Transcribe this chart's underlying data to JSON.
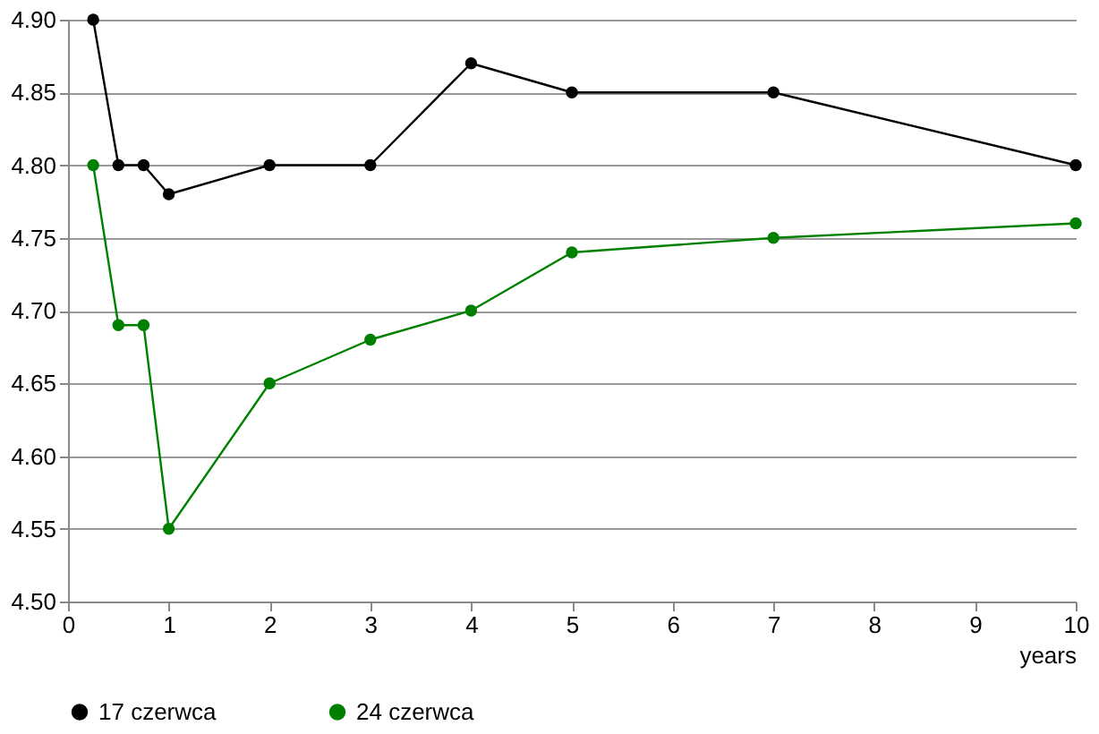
{
  "chart_data": {
    "type": "line",
    "xlabel": "years",
    "x": [
      0.25,
      0.5,
      0.75,
      1,
      2,
      3,
      4,
      5,
      7,
      10
    ],
    "series": [
      {
        "name": "17 czerwca",
        "color": "#000000",
        "values": [
          4.9,
          4.8,
          4.8,
          4.78,
          4.8,
          4.8,
          4.87,
          4.85,
          4.85,
          4.8
        ]
      },
      {
        "name": "24 czerwca",
        "color": "#008000",
        "values": [
          4.8,
          4.69,
          4.69,
          4.55,
          4.65,
          4.68,
          4.7,
          4.74,
          4.75,
          4.76
        ]
      }
    ],
    "xlim": [
      0,
      10
    ],
    "xticks": [
      0,
      1,
      2,
      3,
      4,
      5,
      6,
      7,
      8,
      9,
      10
    ],
    "ylim": [
      4.5,
      4.9
    ],
    "yticks": [
      {
        "value": 4.5,
        "label": "4.50"
      },
      {
        "value": 4.55,
        "label": "4.55"
      },
      {
        "value": 4.6,
        "label": "4.60"
      },
      {
        "value": 4.65,
        "label": "4.65"
      },
      {
        "value": 4.7,
        "label": "4.70"
      },
      {
        "value": 4.75,
        "label": "4.75"
      },
      {
        "value": 4.8,
        "label": "4.80"
      },
      {
        "value": 4.85,
        "label": "4.85"
      },
      {
        "value": 4.9,
        "label": "4.90"
      }
    ],
    "grid": "y",
    "legend": "bottom",
    "marker": "circle",
    "line_style": "solid"
  }
}
